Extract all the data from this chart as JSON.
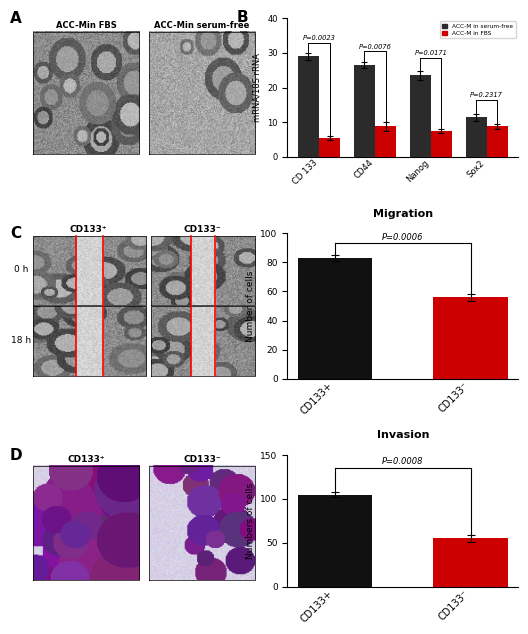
{
  "panel_B": {
    "categories": [
      "CD 133",
      "CD44",
      "Nanog",
      "Sox2"
    ],
    "serum_free_values": [
      29.0,
      26.5,
      23.5,
      11.5
    ],
    "serum_free_errors": [
      1.0,
      0.8,
      1.2,
      1.0
    ],
    "fbs_values": [
      5.5,
      8.8,
      7.5,
      8.8
    ],
    "fbs_errors": [
      0.5,
      1.2,
      0.5,
      0.6
    ],
    "ylabel": "mRNA/18S rRNA",
    "ylim": [
      0,
      40
    ],
    "yticks": [
      0,
      10,
      20,
      30,
      40
    ],
    "color_serum_free": "#2b2b2b",
    "color_fbs": "#cc0000",
    "legend_serum_free": "ACC-M in serum-free",
    "legend_fbs": "ACC-M in FBS",
    "p_values": [
      "P=0.0023",
      "P=0.0076",
      "P=0.0171",
      "P=0.2317"
    ]
  },
  "panel_Migration": {
    "title": "Migration",
    "categories": [
      "CD133+",
      "CD133⁻"
    ],
    "values": [
      83,
      56
    ],
    "errors": [
      2.0,
      2.5
    ],
    "colors": [
      "#111111",
      "#cc0000"
    ],
    "ylabel": "Number of cells",
    "ylim": [
      0,
      100
    ],
    "yticks": [
      0,
      20,
      40,
      60,
      80,
      100
    ],
    "p_value": "P=0.0006"
  },
  "panel_Invasion": {
    "title": "Invasion",
    "categories": [
      "CD133+",
      "CD133⁻"
    ],
    "values": [
      105,
      55
    ],
    "errors": [
      3.0,
      3.5
    ],
    "colors": [
      "#111111",
      "#cc0000"
    ],
    "ylabel": "Numbers of cells",
    "ylim": [
      0,
      150
    ],
    "yticks": [
      0,
      50,
      100,
      150
    ],
    "p_value": "P=0.0008"
  },
  "background_color": "#ffffff"
}
